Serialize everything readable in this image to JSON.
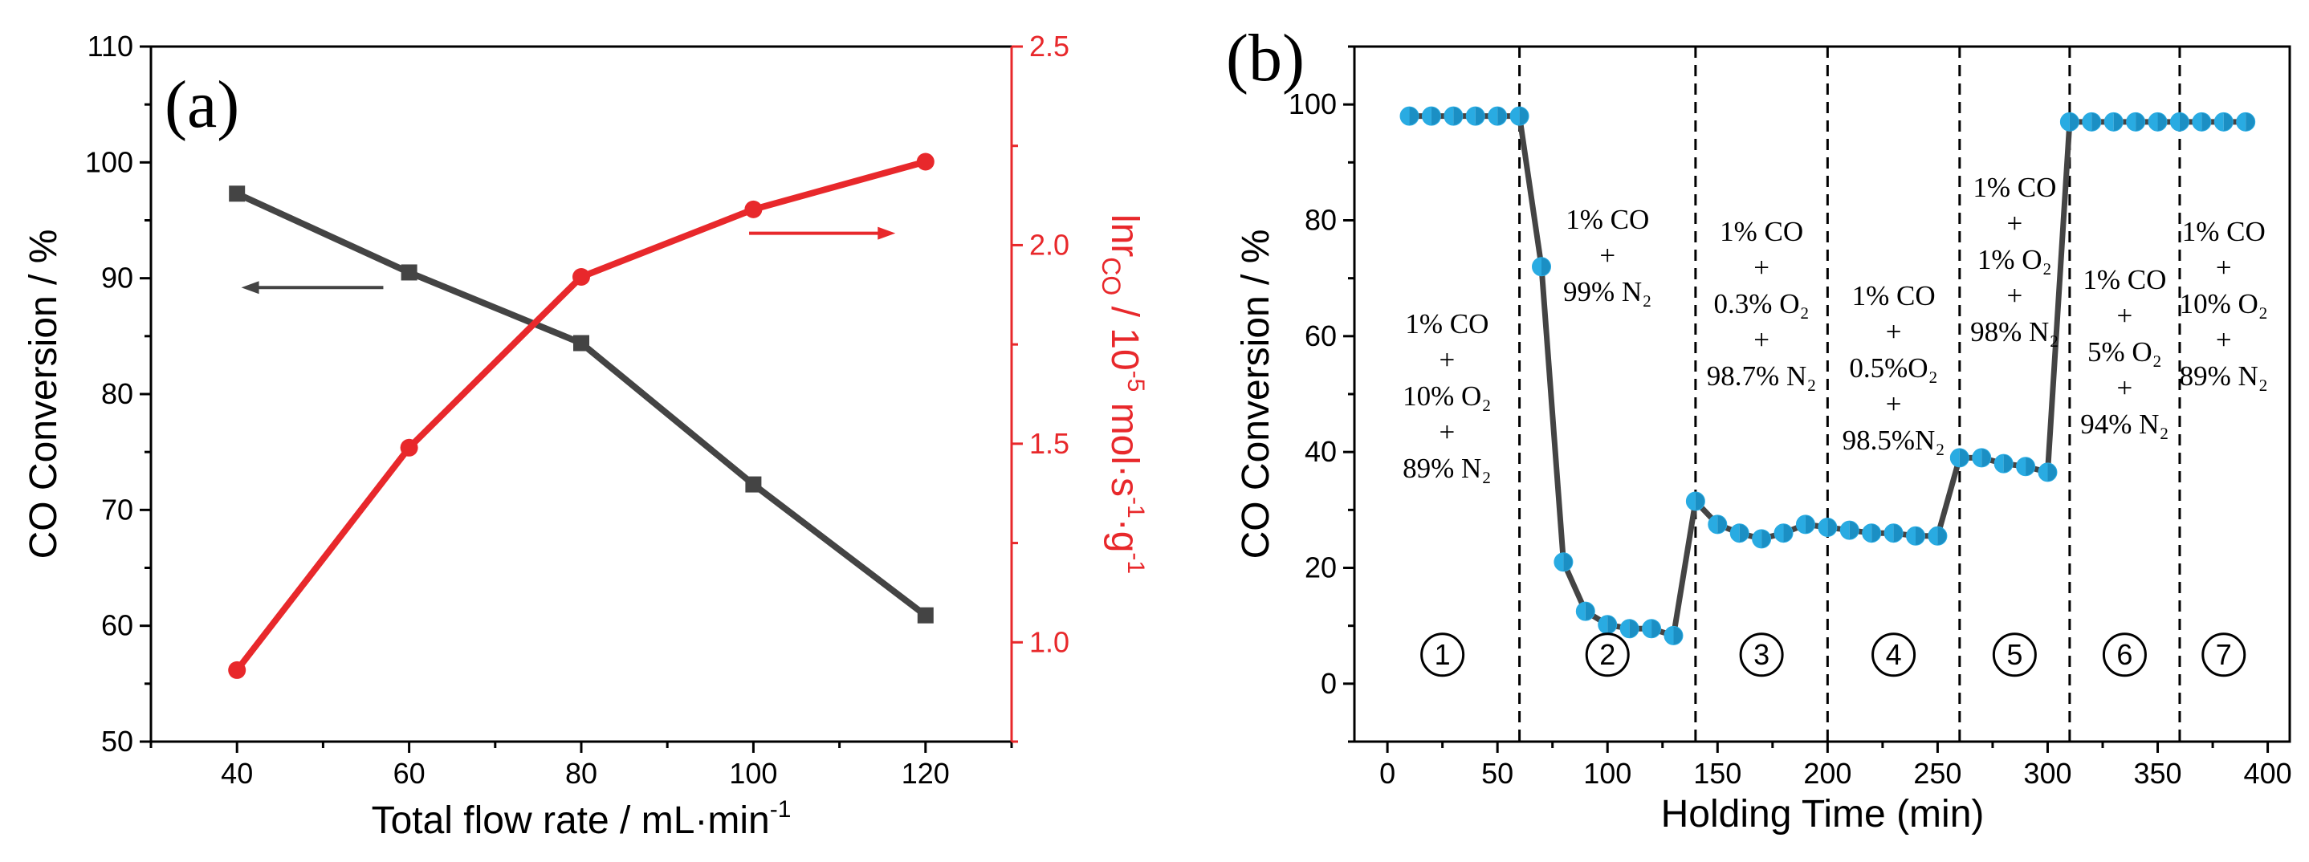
{
  "chart_data": [
    {
      "panel": "(a)",
      "type": "line",
      "xlabel": "Total flow rate / mL·min",
      "xlabel_sup": "-1",
      "ylabel": "CO Conversion / %",
      "y2label_parts": [
        "lnr",
        "CO",
        " / 10",
        "-5",
        " mol·s",
        "-1",
        "·g",
        "-1"
      ],
      "xlim": [
        30,
        130
      ],
      "ylim": [
        50,
        110
      ],
      "y2lim": [
        0.75,
        2.5
      ],
      "xticks": [
        "40",
        "60",
        "80",
        "100",
        "120"
      ],
      "yticks": [
        "50",
        "60",
        "70",
        "80",
        "90",
        "100",
        "110"
      ],
      "y2ticks": [
        "1.0",
        "1.5",
        "2.0",
        "2.5"
      ],
      "series": [
        {
          "name": "CO Conversion",
          "axis": "left",
          "color": "#444444",
          "marker": "square",
          "x": [
            40,
            60,
            80,
            100,
            120
          ],
          "values": [
            97.3,
            90.5,
            84.4,
            72.2,
            60.9
          ]
        },
        {
          "name": "lnrCO",
          "axis": "right",
          "color": "#e8282b",
          "marker": "circle",
          "x": [
            40,
            60,
            80,
            100,
            120
          ],
          "values": [
            0.93,
            1.49,
            1.92,
            2.09,
            2.21
          ]
        }
      ],
      "annotations": [
        {
          "type": "arrow",
          "direction": "left",
          "series": "CO Conversion",
          "color": "#444444"
        },
        {
          "type": "arrow",
          "direction": "right",
          "series": "lnrCO",
          "color": "#e8282b"
        }
      ]
    },
    {
      "panel": "(b)",
      "type": "scatter",
      "xlabel": "Holding Time (min)",
      "ylabel": "CO Conversion / %",
      "xlim": [
        -15,
        410
      ],
      "ylim": [
        -10,
        110
      ],
      "xticks": [
        "0",
        "50",
        "100",
        "150",
        "200",
        "250",
        "300",
        "350",
        "400"
      ],
      "yticks": [
        "0",
        "20",
        "40",
        "60",
        "80",
        "100"
      ],
      "marker_color": "#29abe2",
      "line_color": "#444444",
      "boundaries": [
        60,
        140,
        200,
        260,
        310,
        360
      ],
      "series": [
        {
          "name": "CO Conversion",
          "x": [
            10,
            20,
            30,
            40,
            50,
            60,
            70,
            80,
            90,
            100,
            110,
            120,
            130,
            140,
            150,
            160,
            170,
            180,
            190,
            200,
            210,
            220,
            230,
            240,
            250,
            260,
            270,
            280,
            290,
            300,
            310,
            320,
            330,
            340,
            350,
            360,
            370,
            380,
            390
          ],
          "values": [
            98,
            98,
            98,
            98,
            98,
            98,
            72,
            21,
            12.5,
            10.2,
            9.5,
            9.5,
            8.3,
            31.5,
            27.5,
            26,
            25,
            26,
            27.5,
            27,
            26.5,
            26,
            26,
            25.5,
            25.5,
            39,
            39,
            38,
            37.5,
            36.5,
            97,
            97,
            97,
            97,
            97,
            97,
            97,
            97,
            97
          ]
        }
      ],
      "stages": [
        {
          "num": "1",
          "lines": [
            "1% CO",
            "+",
            "10% O₂",
            "+",
            "89% N₂"
          ]
        },
        {
          "num": "2",
          "lines": [
            "1% CO",
            "+",
            "99% N₂"
          ]
        },
        {
          "num": "3",
          "lines": [
            "1% CO",
            "+",
            "0.3% O₂",
            "+",
            "98.7% N₂"
          ]
        },
        {
          "num": "4",
          "lines": [
            "1% CO",
            "+",
            "0.5%O₂",
            "+",
            "98.5%N₂"
          ]
        },
        {
          "num": "5",
          "lines": [
            "1% CO",
            "+",
            "1% O₂",
            "+",
            "98% N₂"
          ]
        },
        {
          "num": "6",
          "lines": [
            "1% CO",
            "+",
            "5% O₂",
            "+",
            "94% N₂"
          ]
        },
        {
          "num": "7",
          "lines": [
            "1% CO",
            "+",
            "10% O₂",
            "+",
            "89% N₂"
          ]
        }
      ]
    }
  ]
}
